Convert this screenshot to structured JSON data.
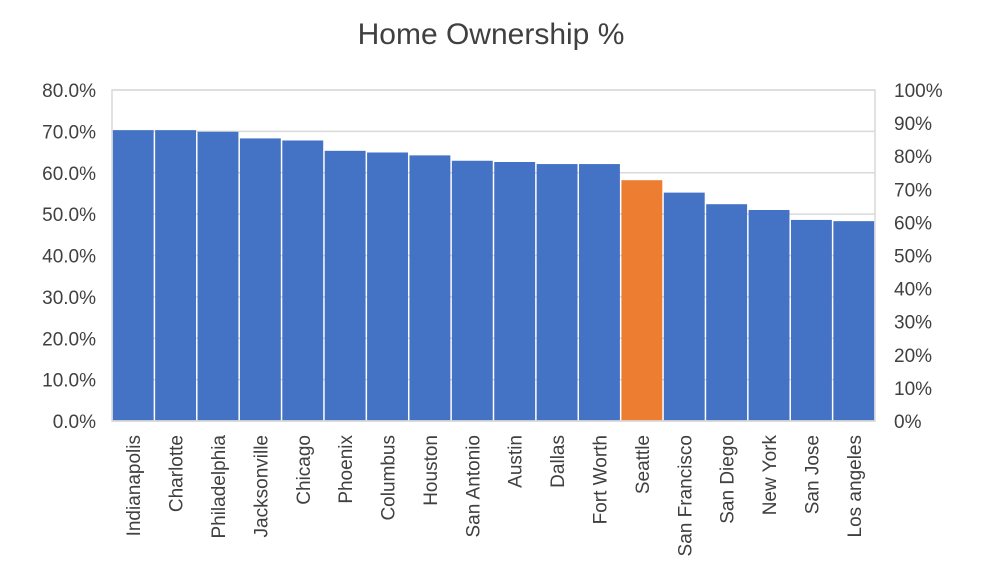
{
  "chart_data": {
    "type": "bar",
    "title": "Home Ownership %",
    "categories": [
      "Indianapolis",
      "Charlotte",
      "Philadelphia",
      "Jacksonville",
      "Chicago",
      "Phoenix",
      "Columbus",
      "Houston",
      "San Antonio",
      "Austin",
      "Dallas",
      "Fort Worth",
      "Seattle",
      "San Francisco",
      "San Diego",
      "New York",
      "San Jose",
      "Los angeles"
    ],
    "values": [
      70.3,
      70.3,
      69.9,
      68.3,
      67.8,
      65.3,
      64.9,
      64.2,
      62.9,
      62.6,
      62.1,
      62.1,
      58.2,
      55.2,
      52.4,
      51.0,
      48.6,
      48.3
    ],
    "highlight_category": "Seattle",
    "colors": {
      "bar": "#4472C4",
      "highlight": "#ED7D31",
      "grid": "#D9D9D9",
      "text": "#404040"
    },
    "ylim": [
      0,
      80
    ],
    "yticks": [
      "0.0%",
      "10.0%",
      "20.0%",
      "30.0%",
      "40.0%",
      "50.0%",
      "60.0%",
      "70.0%",
      "80.0%"
    ],
    "y2lim": [
      0,
      100
    ],
    "y2ticks": [
      "0%",
      "10%",
      "20%",
      "30%",
      "40%",
      "50%",
      "60%",
      "70%",
      "80%",
      "90%",
      "100%"
    ],
    "grid": true,
    "xlabel": "",
    "ylabel": ""
  }
}
